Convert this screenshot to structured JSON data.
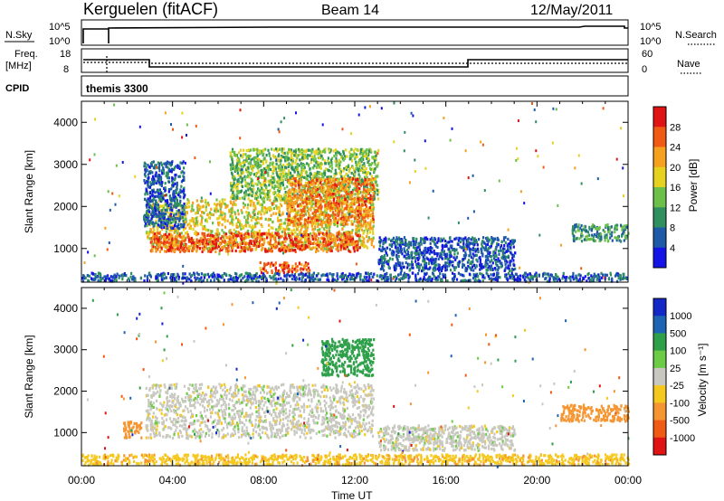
{
  "header": {
    "station": "Kerguelen (fitACF)",
    "beam": "Beam 14",
    "date": "12/May/2011"
  },
  "summary": {
    "nsky_label": "N.Sky",
    "nsearch_label": "N.Search",
    "freq_label_1": "Freq.",
    "freq_label_2": "[MHz]",
    "nave_label": "Nave",
    "cpid_label": "CPID",
    "cpid_value": "themis 3300",
    "nsky_ticks": [
      "10^5",
      "10^0"
    ],
    "nsearch_ticks": [
      "10^5",
      "10^0"
    ],
    "freq_ticks": [
      "18",
      "8"
    ],
    "nave_ticks": [
      "60",
      "0"
    ]
  },
  "chart_data": [
    {
      "type": "heatmap",
      "name": "power",
      "xlabel": "Time UT",
      "ylabel": "Slant Range [km]",
      "x_ticks": [
        "00:00",
        "04:00",
        "08:00",
        "12:00",
        "16:00",
        "20:00",
        "00:00"
      ],
      "x_range_hours": [
        0,
        24
      ],
      "y_ticks": [
        1000,
        2000,
        3000,
        4000
      ],
      "y_range_km": [
        200,
        4500
      ],
      "colorbar_label": "Power [dB]",
      "colorbar_ticks": [
        "4",
        "8",
        "12",
        "16",
        "20",
        "24",
        "28"
      ],
      "colorbar_colors": [
        "#1414e6",
        "#1e5aa8",
        "#2f8f5f",
        "#6cc04a",
        "#e6d21e",
        "#f5a01e",
        "#f05a14",
        "#e01414"
      ],
      "regions": [
        {
          "t0": 2.8,
          "t1": 12.8,
          "r0": 1000,
          "r1": 2200,
          "level": 18
        },
        {
          "t0": 3.0,
          "t1": 12.2,
          "r0": 950,
          "r1": 1400,
          "level": 26
        },
        {
          "t0": 2.7,
          "t1": 4.5,
          "r0": 1500,
          "r1": 3100,
          "level": 6
        },
        {
          "t0": 6.5,
          "t1": 13.0,
          "r0": 2200,
          "r1": 3400,
          "level": 14
        },
        {
          "t0": 9.0,
          "t1": 12.8,
          "r0": 1600,
          "r1": 2700,
          "level": 24
        },
        {
          "t0": 13.0,
          "t1": 19.0,
          "r0": 500,
          "r1": 1300,
          "level": 6
        },
        {
          "t0": 21.5,
          "t1": 24.0,
          "r0": 1200,
          "r1": 1600,
          "level": 10
        },
        {
          "t0": 7.8,
          "t1": 10.0,
          "r0": 450,
          "r1": 700,
          "level": 26
        },
        {
          "t0": 0.0,
          "t1": 24.0,
          "r0": 250,
          "r1": 450,
          "level": 6
        }
      ]
    },
    {
      "type": "heatmap",
      "name": "velocity",
      "xlabel": "Time UT",
      "ylabel": "Slant Range [km]",
      "x_ticks": [
        "00:00",
        "04:00",
        "08:00",
        "12:00",
        "16:00",
        "20:00",
        "00:00"
      ],
      "x_range_hours": [
        0,
        24
      ],
      "y_ticks": [
        1000,
        2000,
        3000,
        4000
      ],
      "y_range_km": [
        200,
        4500
      ],
      "colorbar_label": "Velocity [m s⁻¹]",
      "colorbar_ticks": [
        "1000",
        "500",
        "100",
        "25",
        "-25",
        "-100",
        "-500",
        "-1000"
      ],
      "colorbar_colors": [
        "#1428c8",
        "#1e64b4",
        "#2fa04a",
        "#6ccc46",
        "#c8c8c0",
        "#f5c81e",
        "#f59632",
        "#f05a14",
        "#e01414"
      ],
      "regions": [
        {
          "t0": 2.8,
          "t1": 12.8,
          "r0": 900,
          "r1": 2200,
          "level": 0
        },
        {
          "t0": 10.5,
          "t1": 12.8,
          "r0": 2400,
          "r1": 3300,
          "level": 200
        },
        {
          "t0": 13.0,
          "t1": 19.0,
          "r0": 600,
          "r1": 1200,
          "level": 0
        },
        {
          "t0": 21.0,
          "t1": 24.0,
          "r0": 1300,
          "r1": 1700,
          "level": -300
        },
        {
          "t0": 1.8,
          "t1": 2.6,
          "r0": 900,
          "r1": 1300,
          "level": -200
        },
        {
          "t0": 0.0,
          "t1": 24.0,
          "r0": 250,
          "r1": 500,
          "level": -80
        }
      ]
    }
  ],
  "colors": {
    "frame": "#000000",
    "background": "#ffffff"
  }
}
